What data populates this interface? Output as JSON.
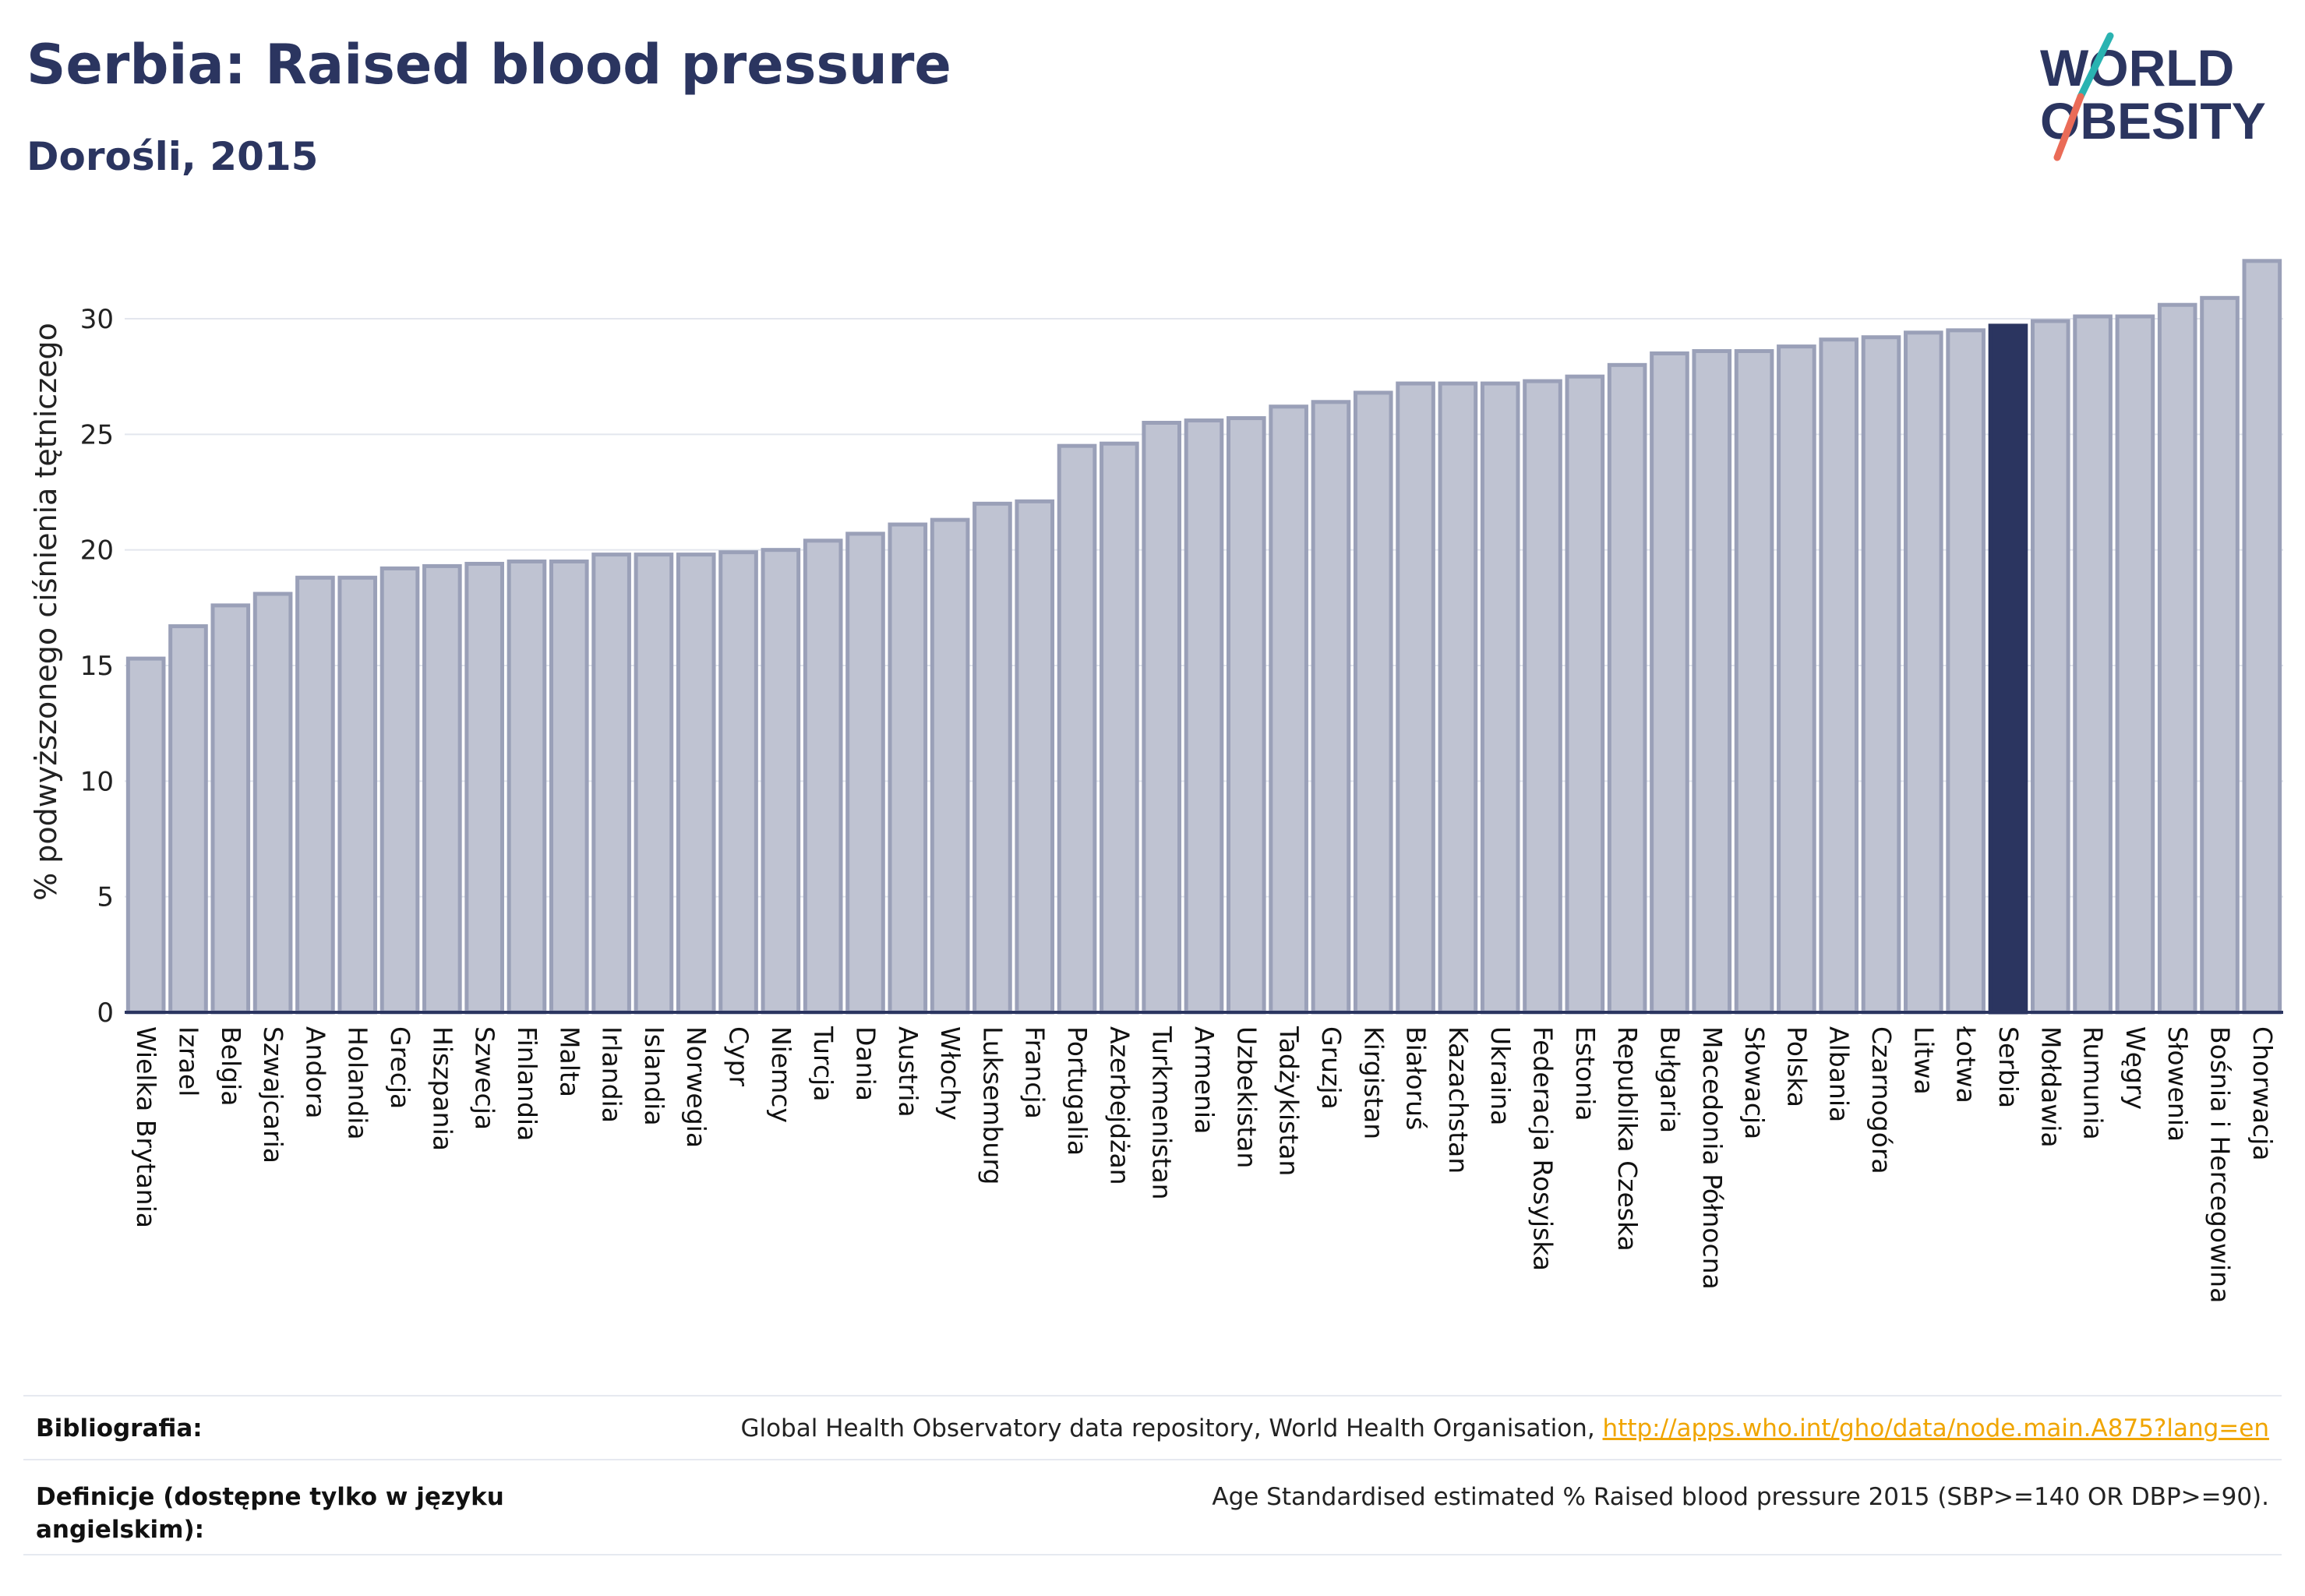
{
  "header": {
    "title": "Serbia: Raised blood pressure",
    "subtitle": "Dorośli, 2015",
    "logo_line1": "WORLD",
    "logo_line2": "OBESITY"
  },
  "colors": {
    "bar": "#bfc3d2",
    "bar_border": "#9aa0b8",
    "highlight": "#2b3560",
    "grid": "#e3e6ee",
    "logo_slash_top": "#2ab3b1",
    "logo_slash_bottom": "#ea6b57"
  },
  "chart_data": {
    "type": "bar",
    "ylabel": "% podwyższonego ciśnienia tętniczego",
    "ylim": [
      0,
      33
    ],
    "yticks": [
      0,
      5,
      10,
      15,
      20,
      25,
      30
    ],
    "grid": true,
    "highlight": "Serbia",
    "categories": [
      "Wielka Brytania",
      "Izrael",
      "Belgia",
      "Szwajcaria",
      "Andora",
      "Holandia",
      "Grecja",
      "Hiszpania",
      "Szwecja",
      "Finlandia",
      "Malta",
      "Irlandia",
      "Islandia",
      "Norwegia",
      "Cypr",
      "Niemcy",
      "Turcja",
      "Dania",
      "Austria",
      "Włochy",
      "Luksemburg",
      "Francja",
      "Portugalia",
      "Azerbejdżan",
      "Turkmenistan",
      "Armenia",
      "Uzbekistan",
      "Tadżykistan",
      "Gruzja",
      "Kirgistan",
      "Białoruś",
      "Kazachstan",
      "Ukraina",
      "Federacja Rosyjska",
      "Estonia",
      "Republika Czeska",
      "Bułgaria",
      "Macedonia Północna",
      "Słowacja",
      "Polska",
      "Albania",
      "Czarnogóra",
      "Litwa",
      "Łotwa",
      "Serbia",
      "Mołdawia",
      "Rumunia",
      "Węgry",
      "Słowenia",
      "Bośnia i Hercegowina",
      "Chorwacja"
    ],
    "values": [
      15.3,
      16.7,
      17.6,
      18.1,
      18.8,
      18.8,
      19.2,
      19.3,
      19.4,
      19.5,
      19.5,
      19.8,
      19.8,
      19.8,
      19.9,
      20.0,
      20.4,
      20.7,
      21.1,
      21.3,
      22.0,
      22.1,
      24.5,
      24.6,
      25.5,
      25.6,
      25.7,
      26.2,
      26.4,
      26.8,
      27.2,
      27.2,
      27.2,
      27.3,
      27.5,
      28.0,
      28.5,
      28.6,
      28.6,
      28.8,
      29.1,
      29.2,
      29.4,
      29.5,
      29.7,
      29.9,
      30.1,
      30.1,
      30.6,
      30.9,
      32.5
    ]
  },
  "footer": {
    "bibliography_label": "Bibliografia:",
    "bibliography_text": "Global Health Observatory data repository, World Health Organisation, ",
    "bibliography_link": "http://apps.who.int/gho/data/node.main.A875?lang=en",
    "definitions_label_1": "Definicje (dostępne tylko w języku",
    "definitions_label_2": "angielskim):",
    "definitions_text": "Age Standardised estimated % Raised blood pressure 2015 (SBP>=140 OR DBP>=90)."
  }
}
